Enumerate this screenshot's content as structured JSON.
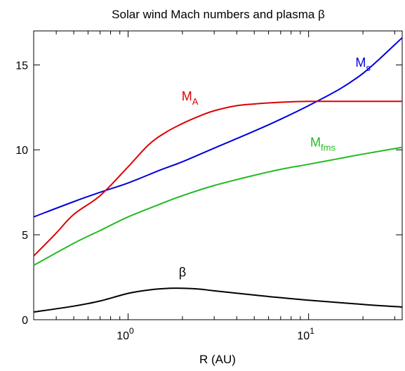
{
  "chart_data": {
    "type": "line",
    "title": "Solar wind Mach numbers and plasma β",
    "xlabel": "R (AU)",
    "ylabel": "",
    "x_scale": "log",
    "xlim": [
      0.3,
      33
    ],
    "ylim": [
      0,
      17
    ],
    "grid": false,
    "x_ticks": [
      {
        "value": 1,
        "base": "10",
        "exp": "0"
      },
      {
        "value": 10,
        "base": "10",
        "exp": "1"
      }
    ],
    "x_minor_ticks": [
      0.3,
      0.4,
      0.5,
      0.6,
      0.7,
      0.8,
      0.9,
      2,
      3,
      4,
      5,
      6,
      7,
      8,
      9,
      20,
      30
    ],
    "y_ticks": [
      {
        "value": 0,
        "label": "0"
      },
      {
        "value": 5,
        "label": "5"
      },
      {
        "value": 10,
        "label": "10"
      },
      {
        "value": 15,
        "label": "15"
      }
    ],
    "series": [
      {
        "key": "ms",
        "main": "M",
        "sub": "s",
        "color": "#0000dd",
        "label_at": [
          20,
          14.9
        ],
        "points": [
          [
            0.3,
            6.05
          ],
          [
            0.5,
            6.95
          ],
          [
            0.7,
            7.5
          ],
          [
            1,
            8.05
          ],
          [
            1.5,
            8.8
          ],
          [
            2,
            9.3
          ],
          [
            3,
            10.1
          ],
          [
            5,
            11.1
          ],
          [
            7,
            11.8
          ],
          [
            10,
            12.6
          ],
          [
            15,
            13.6
          ],
          [
            20,
            14.5
          ],
          [
            25,
            15.4
          ],
          [
            33,
            16.6
          ]
        ]
      },
      {
        "key": "ma",
        "main": "M",
        "sub": "A",
        "color": "#dd0000",
        "label_at": [
          2.2,
          12.9
        ],
        "points": [
          [
            0.3,
            3.75
          ],
          [
            0.4,
            5.1
          ],
          [
            0.5,
            6.2
          ],
          [
            0.7,
            7.3
          ],
          [
            1,
            9.0
          ],
          [
            1.3,
            10.3
          ],
          [
            1.6,
            11.0
          ],
          [
            2,
            11.55
          ],
          [
            2.5,
            12.0
          ],
          [
            3,
            12.3
          ],
          [
            4,
            12.6
          ],
          [
            5,
            12.7
          ],
          [
            7,
            12.8
          ],
          [
            10,
            12.85
          ],
          [
            20,
            12.85
          ],
          [
            33,
            12.85
          ]
        ]
      },
      {
        "key": "mfms",
        "main": "M",
        "sub": "fms",
        "color": "#22bb22",
        "label_at": [
          12,
          10.2
        ],
        "points": [
          [
            0.3,
            3.2
          ],
          [
            0.5,
            4.5
          ],
          [
            0.7,
            5.25
          ],
          [
            1,
            6.05
          ],
          [
            1.5,
            6.8
          ],
          [
            2,
            7.3
          ],
          [
            3,
            7.9
          ],
          [
            5,
            8.5
          ],
          [
            7,
            8.85
          ],
          [
            10,
            9.15
          ],
          [
            15,
            9.5
          ],
          [
            20,
            9.75
          ],
          [
            33,
            10.15
          ]
        ]
      },
      {
        "key": "beta",
        "main": "β",
        "sub": "",
        "color": "#000000",
        "label_at": [
          2.0,
          2.55
        ],
        "points": [
          [
            0.3,
            0.45
          ],
          [
            0.5,
            0.8
          ],
          [
            0.7,
            1.1
          ],
          [
            1,
            1.55
          ],
          [
            1.3,
            1.75
          ],
          [
            1.7,
            1.85
          ],
          [
            2,
            1.85
          ],
          [
            2.5,
            1.8
          ],
          [
            3,
            1.7
          ],
          [
            5,
            1.45
          ],
          [
            7,
            1.3
          ],
          [
            10,
            1.15
          ],
          [
            20,
            0.9
          ],
          [
            33,
            0.75
          ]
        ]
      }
    ]
  }
}
